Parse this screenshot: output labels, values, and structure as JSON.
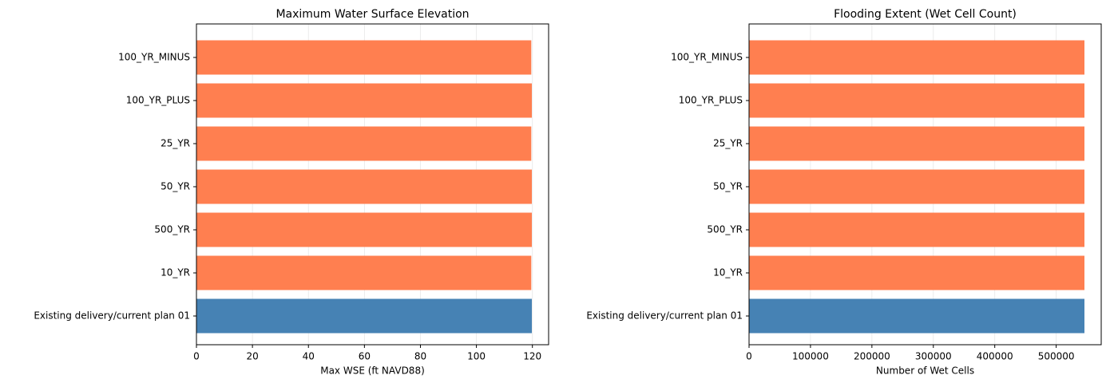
{
  "chart_data": [
    {
      "type": "barh",
      "title": "Maximum Water Surface Elevation",
      "xlabel": "Max WSE (ft NAVD88)",
      "categories": [
        "100_YR_MINUS",
        "100_YR_PLUS",
        "25_YR",
        "50_YR",
        "500_YR",
        "10_YR",
        "Existing delivery/current plan 01"
      ],
      "values": [
        119.6,
        119.8,
        119.6,
        119.8,
        119.8,
        119.6,
        119.8
      ],
      "colors": [
        "#ff7f50",
        "#ff7f50",
        "#ff7f50",
        "#ff7f50",
        "#ff7f50",
        "#ff7f50",
        "#4682b4"
      ],
      "xlim": [
        0,
        125.79
      ],
      "xticks": [
        0,
        20,
        40,
        60,
        80,
        100,
        120
      ],
      "grid": true
    },
    {
      "type": "barh",
      "title": "Flooding Extent (Wet Cell Count)",
      "xlabel": "Number of Wet Cells",
      "categories": [
        "100_YR_MINUS",
        "100_YR_PLUS",
        "25_YR",
        "50_YR",
        "500_YR",
        "10_YR",
        "Existing delivery/current plan 01"
      ],
      "values": [
        546000,
        546000,
        546000,
        546000,
        546000,
        546000,
        546000
      ],
      "colors": [
        "#ff7f50",
        "#ff7f50",
        "#ff7f50",
        "#ff7f50",
        "#ff7f50",
        "#ff7f50",
        "#4682b4"
      ],
      "xlim": [
        0,
        573300
      ],
      "xticks": [
        0,
        100000,
        200000,
        300000,
        400000,
        500000
      ],
      "grid": true
    }
  ]
}
